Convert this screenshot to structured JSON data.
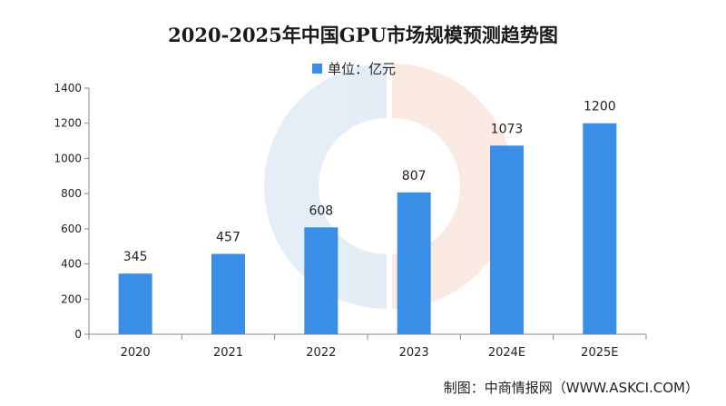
{
  "chart_data": {
    "type": "bar",
    "title": "2020-2025年中国GPU市场规模预测趋势图",
    "legend": {
      "label": "单位：亿元",
      "position": "top",
      "color": "#3a8ee6"
    },
    "categories": [
      "2020",
      "2021",
      "2022",
      "2023",
      "2024E",
      "2025E"
    ],
    "values": [
      345,
      457,
      608,
      807,
      1073,
      1200
    ],
    "data_labels": [
      "345",
      "457",
      "608",
      "807",
      "1073",
      "1200"
    ],
    "ylim": [
      0,
      1400
    ],
    "yticks": [
      0,
      200,
      400,
      600,
      800,
      1000,
      1200,
      1400
    ],
    "xlabel": "",
    "ylabel": "",
    "grid": false,
    "bar_color": "#3a8ee6"
  },
  "source": "制图：中商情报网（WWW.ASKCI.COM）"
}
